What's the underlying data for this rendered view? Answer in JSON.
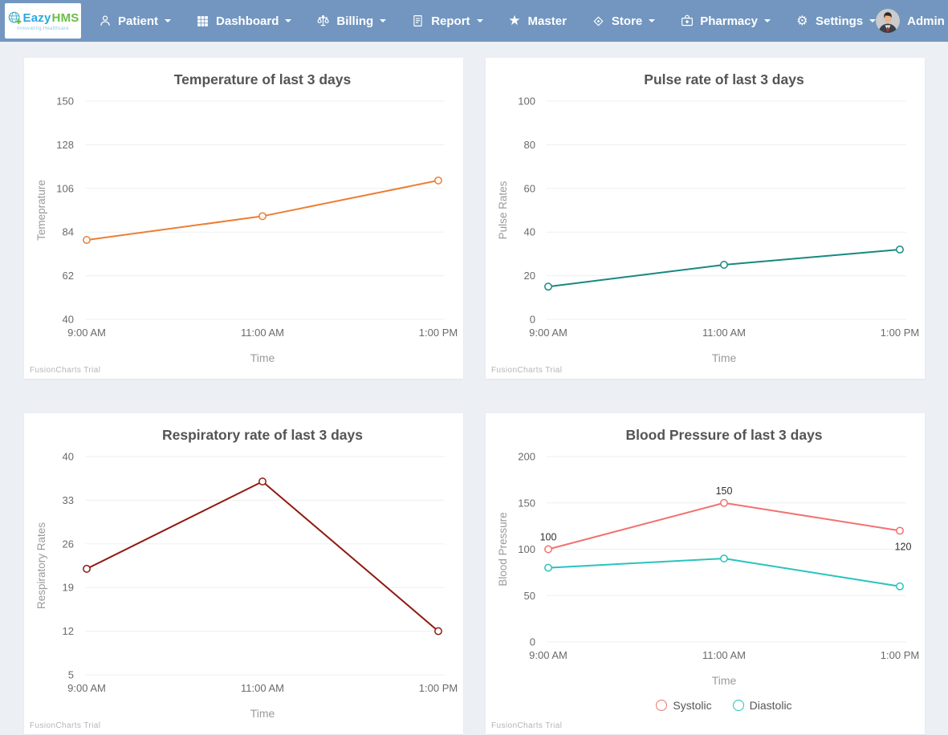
{
  "navbar": {
    "logo": {
      "brand_blue": "Eazy",
      "brand_green": "HMS",
      "tagline": "Innovating Healthcare"
    },
    "items": [
      {
        "id": "patient",
        "label": "Patient",
        "icon": "patient-icon",
        "caret": true
      },
      {
        "id": "dashboard",
        "label": "Dashboard",
        "icon": "dashboard-icon",
        "caret": true
      },
      {
        "id": "billing",
        "label": "Billing",
        "icon": "billing-icon",
        "caret": true
      },
      {
        "id": "report",
        "label": "Report",
        "icon": "report-icon",
        "caret": true
      },
      {
        "id": "master",
        "label": "Master",
        "icon": "master-icon",
        "caret": false
      },
      {
        "id": "store",
        "label": "Store",
        "icon": "store-icon",
        "caret": true
      },
      {
        "id": "pharmacy",
        "label": "Pharmacy",
        "icon": "pharmacy-icon",
        "caret": true
      },
      {
        "id": "settings",
        "label": "Settings",
        "icon": "settings-icon",
        "caret": true
      }
    ],
    "user": {
      "name": "Admin"
    }
  },
  "colors": {
    "navbar_bg": "#7296BF",
    "page_bg": "#ECEFF4",
    "card_bg": "#FFFFFF",
    "grid_line": "#EFEFEF",
    "title_text": "#545454",
    "tick_text": "#6A6A6A",
    "axis_name_text": "#9A9A9A",
    "watermark_text": "#B5B5B5",
    "data_label_text": "#2F2F2F"
  },
  "chart_data": [
    {
      "id": "temperature-chart",
      "type": "line",
      "title": "Temperature of last 3 days",
      "xlabel": "Time",
      "ylabel": "Temeprature",
      "categories": [
        "9:00 AM",
        "11:00 AM",
        "1:00 PM"
      ],
      "ylim": [
        40,
        150
      ],
      "ystep": 22,
      "grid": true,
      "legend_position": null,
      "watermark": "FusionCharts Trial",
      "series": [
        {
          "color": "#EC7E33",
          "values": [
            80,
            92,
            110
          ],
          "show_values": false
        }
      ]
    },
    {
      "id": "pulse-chart",
      "type": "line",
      "title": "Pulse rate of last 3 days",
      "xlabel": "Time",
      "ylabel": "Pulse Rates",
      "categories": [
        "9:00 AM",
        "11:00 AM",
        "1:00 PM"
      ],
      "ylim": [
        0,
        100
      ],
      "ystep": 20,
      "grid": true,
      "legend_position": null,
      "watermark": "FusionCharts Trial",
      "series": [
        {
          "color": "#17897E",
          "values": [
            15,
            25,
            32
          ],
          "show_values": false
        }
      ]
    },
    {
      "id": "respiratory-chart",
      "type": "line",
      "title": "Respiratory rate of last 3 days",
      "xlabel": "Time",
      "ylabel": "Respiratory Rates",
      "categories": [
        "9:00 AM",
        "11:00 AM",
        "1:00 PM"
      ],
      "ylim": [
        5,
        40
      ],
      "ystep": 7,
      "grid": true,
      "legend_position": null,
      "watermark": "FusionCharts Trial",
      "series": [
        {
          "color": "#8E1A10",
          "values": [
            22,
            36,
            12
          ],
          "show_values": false
        }
      ]
    },
    {
      "id": "blood-pressure-chart",
      "type": "line",
      "title": "Blood Pressure of last 3 days",
      "xlabel": "Time",
      "ylabel": "Blood Pressure",
      "categories": [
        "9:00 AM",
        "11:00 AM",
        "1:00 PM"
      ],
      "ylim": [
        0,
        200
      ],
      "ystep": 50,
      "grid": true,
      "legend_position": "bottom",
      "watermark": "FusionCharts Trial",
      "series": [
        {
          "name": "Systolic",
          "color": "#F2726F",
          "values": [
            100,
            150,
            120
          ],
          "show_values": true
        },
        {
          "name": "Diastolic",
          "color": "#29C3BE",
          "values": [
            80,
            90,
            60
          ],
          "show_values": false
        }
      ]
    }
  ]
}
